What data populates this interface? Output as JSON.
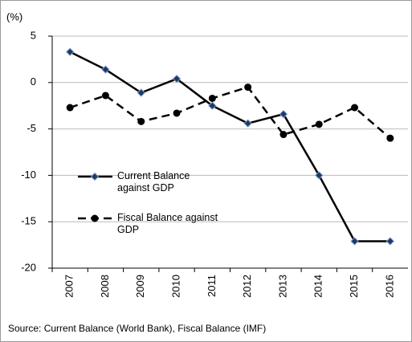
{
  "chart_data": {
    "type": "line",
    "y_label": "(%)",
    "source": "Source: Current Balance (World Bank), Fiscal Balance (IMF)",
    "categories": [
      "2007",
      "2008",
      "2009",
      "2010",
      "2011",
      "2012",
      "2013",
      "2014",
      "2015",
      "2016"
    ],
    "series": [
      {
        "name": "Current Balance against GDP",
        "color": "#000000",
        "marker": "diamond",
        "marker_color": "#1f3864",
        "dash": "solid",
        "values": [
          3.3,
          1.4,
          -1.1,
          0.4,
          -2.5,
          -4.4,
          -3.4,
          -10.0,
          -17.1,
          -17.1
        ]
      },
      {
        "name": "Fiscal Balance against GDP",
        "color": "#000000",
        "marker": "circle",
        "marker_color": "#000000",
        "dash": "dashed",
        "values": [
          -2.7,
          -1.4,
          -4.2,
          -3.3,
          -1.7,
          -0.5,
          -5.6,
          -4.5,
          -2.7,
          -6.0
        ]
      }
    ],
    "ylim": [
      -20,
      5
    ],
    "yticks": [
      -20,
      -15,
      -10,
      -5,
      0,
      5
    ],
    "grid": true
  }
}
